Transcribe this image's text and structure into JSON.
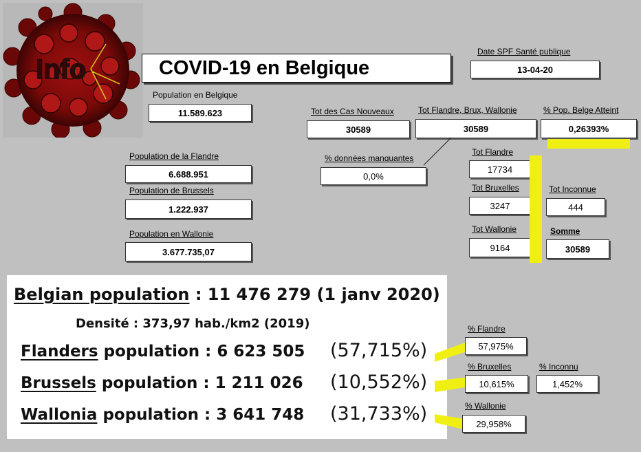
{
  "logo": {
    "text": "Info",
    "icon": "virus-icon"
  },
  "title": "COVID-19 en Belgique",
  "date": {
    "label": "Date SPF Santé publique",
    "value": "13-04-20"
  },
  "population_be": {
    "label": "Population en Belgique",
    "value": "11.589.623"
  },
  "tot_nouveaux": {
    "label": "Tot des Cas Nouveaux",
    "value": "30589"
  },
  "tot_regions": {
    "label": "Tot Flandre, Brux, Wallonie",
    "value": "30589"
  },
  "pct_pop": {
    "label": "% Pop. Belge Atteint",
    "value": "0,26393%"
  },
  "pop_flandre": {
    "label": "Population de la Flandre",
    "value": "6.688.951"
  },
  "pop_brussels": {
    "label": "Population de Brussels",
    "value": "1.222.937"
  },
  "pop_wallonie": {
    "label": "Population en Wallonie",
    "value": "3.677.735,07"
  },
  "donnees_manquantes": {
    "label": "% données manquantes",
    "value": "0,0%"
  },
  "tot_flandre": {
    "label": "Tot Flandre",
    "value": "17734"
  },
  "tot_bruxelles": {
    "label": "Tot Bruxelles",
    "value": "3247"
  },
  "tot_wallonie": {
    "label": "Tot Wallonie",
    "value": "9164"
  },
  "tot_inconnue": {
    "label": "Tot Inconnue",
    "value": "444"
  },
  "somme": {
    "label": "Somme",
    "value": "30589"
  },
  "pct_flandre": {
    "label": "% Flandre",
    "value": "57,975%"
  },
  "pct_bruxelles": {
    "label": "% Bruxelles",
    "value": "10,615%"
  },
  "pct_inconnu": {
    "label": "% Inconnu",
    "value": "1,452%"
  },
  "pct_wallonie": {
    "label": "% Wallonie",
    "value": "29,958%"
  },
  "panel": {
    "belgian_label": "Belgian population",
    "belgian_value": ": 11 476 279 (1 janv 2020)",
    "densite": "Densité : 373,97 hab./km2 (2019)",
    "flanders_label": "Flanders",
    "flanders_value": "population : 6 623 505",
    "flanders_pct": "(57,715%)",
    "brussels_label": "Brussels",
    "brussels_value": "population : 1 211 026",
    "brussels_pct": "(10,552%)",
    "wallonia_label": "Wallonia",
    "wallonia_value": "population : 3 641 748",
    "wallonia_pct": "(31,733%)"
  },
  "colors": {
    "background": "#c0c0c0",
    "highlight": "#f0ef14"
  }
}
